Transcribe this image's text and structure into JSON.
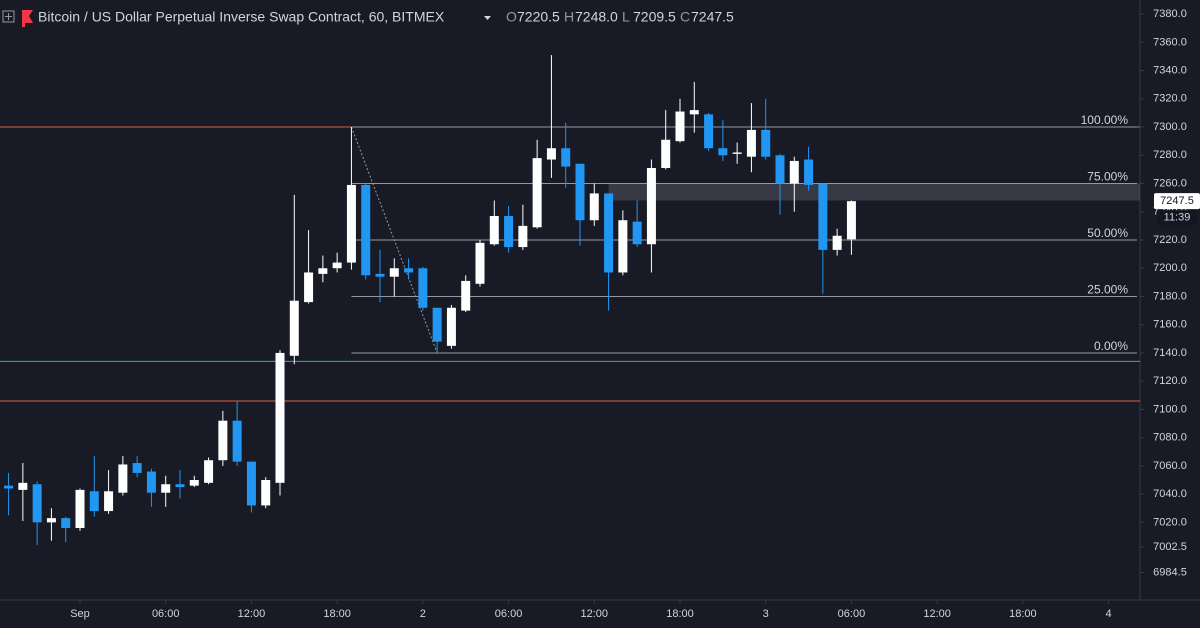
{
  "chart_data": {
    "type": "candlestick",
    "title": "Bitcoin / US Dollar Perpetual Inverse Swap Contract, 60, BITMEX",
    "ohlc_header": [
      {
        "label": "O",
        "value": "7220.5"
      },
      {
        "label": "H",
        "value": "7248.0"
      },
      {
        "label": "L",
        "value": "7209.5"
      },
      {
        "label": "C",
        "value": "7247.5"
      }
    ],
    "price_label": "7247.5",
    "countdown": "11:39",
    "up_color": "#ffffff",
    "down_color": "#2196f3",
    "x": [
      -5,
      -4,
      -3,
      -2,
      -1,
      0,
      1,
      2,
      3,
      4,
      5,
      6,
      7,
      8,
      9,
      10,
      11,
      12,
      13,
      14,
      15,
      16,
      17,
      18,
      19,
      20,
      21,
      22,
      23,
      24,
      25,
      26,
      27,
      28,
      29,
      30,
      31,
      32,
      33,
      34,
      35,
      36,
      37,
      38,
      39,
      40,
      41,
      42,
      43,
      44,
      45,
      46,
      47,
      48,
      49,
      50,
      51,
      52,
      53,
      54
    ],
    "open": [
      7046,
      7043,
      7047,
      7020,
      7023,
      7016,
      7042,
      7028,
      7041,
      7062,
      7056,
      7041,
      7047,
      7046,
      7048,
      7064,
      7092,
      7063,
      7032,
      7048,
      7138,
      7176,
      7196,
      7200,
      7204,
      7259,
      7196,
      7194,
      7200,
      7200,
      7172,
      7145,
      7170,
      7189,
      7217,
      7237,
      7215,
      7229,
      7277,
      7285,
      7274,
      7234,
      7253,
      7197,
      7233,
      7217,
      7271,
      7290,
      7309,
      7309,
      7285,
      7281,
      7279,
      7298,
      7280,
      7260,
      7277,
      7260,
      7213,
      7220.5
    ],
    "high": [
      7055,
      7062,
      7049,
      7030,
      7024,
      7044,
      7067,
      7057,
      7067,
      7067,
      7058,
      7053,
      7057,
      7053,
      7066,
      7099,
      7106,
      7063,
      7052,
      7142,
      7252,
      7227,
      7209,
      7211,
      7300,
      7260,
      7213,
      7207,
      7207,
      7201,
      7172,
      7174,
      7195,
      7220,
      7248,
      7244,
      7245,
      7291,
      7351,
      7303,
      7274,
      7260,
      7253,
      7241,
      7248,
      7277,
      7312,
      7320,
      7332,
      7310,
      7305,
      7289,
      7317,
      7320,
      7281,
      7279,
      7286,
      7260,
      7228,
      7248
    ],
    "low": [
      7025,
      7021,
      7004,
      7007,
      7006,
      7014,
      7024,
      7026,
      7039,
      7052,
      7031,
      7031,
      7037,
      7045,
      7047,
      7060,
      7060,
      7027,
      7030,
      7039,
      7132,
      7175,
      7190,
      7197,
      7199,
      7192,
      7176,
      7180,
      7192,
      7170,
      7140,
      7143,
      7169,
      7187,
      7216,
      7211,
      7213,
      7228,
      7264,
      7257,
      7216,
      7230,
      7170,
      7195,
      7215,
      7197,
      7270,
      7289,
      7296,
      7283,
      7276,
      7274,
      7268,
      7277,
      7238,
      7240,
      7255,
      7182,
      7209,
      7209.5
    ],
    "close": [
      7044,
      7048,
      7020,
      7023,
      7016,
      7043,
      7028,
      7042,
      7061,
      7055,
      7041,
      7047,
      7045,
      7050,
      7064,
      7092,
      7063,
      7032,
      7050,
      7140,
      7177,
      7197,
      7200,
      7204,
      7259,
      7195,
      7194,
      7200,
      7197,
      7172,
      7148,
      7172,
      7191,
      7218,
      7237,
      7215,
      7230,
      7278,
      7285,
      7272,
      7234,
      7253,
      7197,
      7234,
      7217,
      7271,
      7291,
      7311,
      7312,
      7285,
      7280,
      7282,
      7298,
      7279,
      7260,
      7276,
      7259,
      7213,
      7223,
      7247.5
    ],
    "xlim": [
      -5.6,
      74.2
    ],
    "ylim": [
      6965,
      7390
    ],
    "xticks": [
      {
        "value": 0,
        "label": "Sep"
      },
      {
        "value": 6,
        "label": "06:00"
      },
      {
        "value": 12,
        "label": "12:00"
      },
      {
        "value": 18,
        "label": "18:00"
      },
      {
        "value": 24,
        "label": "2"
      },
      {
        "value": 30,
        "label": "06:00"
      },
      {
        "value": 36,
        "label": "12:00"
      },
      {
        "value": 42,
        "label": "18:00"
      },
      {
        "value": 48,
        "label": "3"
      },
      {
        "value": 54,
        "label": "06:00"
      },
      {
        "value": 60,
        "label": "12:00"
      },
      {
        "value": 66,
        "label": "18:00"
      },
      {
        "value": 72,
        "label": "4"
      }
    ],
    "yticks": [
      {
        "value": 7380,
        "label": "7380.0"
      },
      {
        "value": 7360,
        "label": "7360.0"
      },
      {
        "value": 7340,
        "label": "7340.0"
      },
      {
        "value": 7320,
        "label": "7320.0"
      },
      {
        "value": 7300,
        "label": "7300.0"
      },
      {
        "value": 7280,
        "label": "7280.0"
      },
      {
        "value": 7260,
        "label": "7260.0"
      },
      {
        "value": 7240,
        "label": "7240.0"
      },
      {
        "value": 7220,
        "label": "7220.0"
      },
      {
        "value": 7200,
        "label": "7200.0"
      },
      {
        "value": 7180,
        "label": "7180.0"
      },
      {
        "value": 7160,
        "label": "7160.0"
      },
      {
        "value": 7140,
        "label": "7140.0"
      },
      {
        "value": 7120,
        "label": "7120.0"
      },
      {
        "value": 7100,
        "label": "7100.0"
      },
      {
        "value": 7080,
        "label": "7080.0"
      },
      {
        "value": 7060,
        "label": "7060.0"
      },
      {
        "value": 7040,
        "label": "7040.0"
      },
      {
        "value": 7020,
        "label": "7020.0"
      },
      7002.5,
      6984.5
    ],
    "fib_levels": [
      {
        "value": 7300,
        "label": "100.00%"
      },
      {
        "value": 7260,
        "label": "75.00%"
      },
      {
        "value": 7220,
        "label": "50.00%"
      },
      {
        "value": 7180,
        "label": "25.00%"
      },
      {
        "value": 7140,
        "label": "0.00%"
      }
    ],
    "fib_start_x": 19,
    "horizontal_lines": [
      {
        "value": 7300,
        "color": "#e0583a"
      },
      {
        "value": 7134,
        "color": "#2bbd6e"
      },
      {
        "value": 7106,
        "color": "#e0583a"
      }
    ],
    "trend_line": {
      "x": [
        19,
        25
      ],
      "y": [
        7300,
        7140
      ]
    },
    "zone": {
      "x": 37,
      "y": [
        7248,
        7260
      ]
    }
  }
}
